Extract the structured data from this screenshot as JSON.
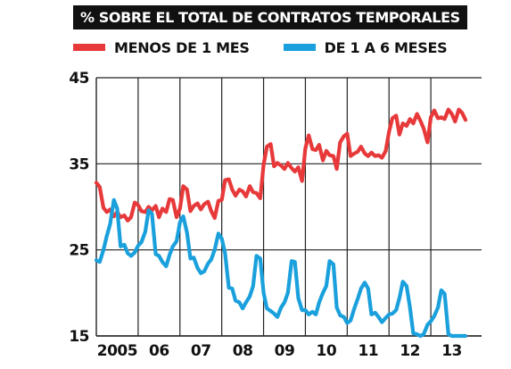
{
  "header": {
    "title": "% SOBRE EL TOTAL DE CONTRATOS TEMPORALES"
  },
  "legend": [
    {
      "label": "MENOS DE 1 MES",
      "color": "#e8393a"
    },
    {
      "label": "DE 1 A 6 MESES",
      "color": "#1aa0dc"
    }
  ],
  "chart_data": {
    "type": "line",
    "title": "% SOBRE EL TOTAL DE CONTRATOS TEMPORALES",
    "xlabel": "",
    "ylabel": "",
    "ylim": [
      15,
      45
    ],
    "yticks": [
      15,
      25,
      35,
      45
    ],
    "xlim": [
      2005.0,
      2014.0
    ],
    "xtick_labels": [
      "2005",
      "06",
      "07",
      "08",
      "09",
      "10",
      "11",
      "12",
      "13"
    ],
    "grid": true,
    "legend_position": "top-left",
    "series": [
      {
        "name": "MENOS DE 1 MES",
        "color": "#e8393a",
        "x": [
          2005.0,
          2005.08,
          2005.17,
          2005.25,
          2005.33,
          2005.42,
          2005.5,
          2005.58,
          2005.67,
          2005.75,
          2005.83,
          2005.92,
          2006.0,
          2006.08,
          2006.17,
          2006.25,
          2006.33,
          2006.42,
          2006.5,
          2006.58,
          2006.67,
          2006.75,
          2006.83,
          2006.92,
          2007.0,
          2007.08,
          2007.17,
          2007.25,
          2007.33,
          2007.42,
          2007.5,
          2007.58,
          2007.67,
          2007.75,
          2007.83,
          2007.92,
          2008.0,
          2008.08,
          2008.17,
          2008.25,
          2008.33,
          2008.42,
          2008.5,
          2008.58,
          2008.67,
          2008.75,
          2008.83,
          2008.92,
          2009.0,
          2009.08,
          2009.17,
          2009.25,
          2009.33,
          2009.42,
          2009.5,
          2009.58,
          2009.67,
          2009.75,
          2009.83,
          2009.92,
          2010.0,
          2010.08,
          2010.17,
          2010.25,
          2010.33,
          2010.42,
          2010.5,
          2010.58,
          2010.67,
          2010.75,
          2010.83,
          2010.92,
          2011.0,
          2011.08,
          2011.17,
          2011.25,
          2011.33,
          2011.42,
          2011.5,
          2011.58,
          2011.67,
          2011.75,
          2011.83,
          2011.92,
          2012.0,
          2012.08,
          2012.17,
          2012.25,
          2012.33,
          2012.42,
          2012.5,
          2012.58,
          2012.67,
          2012.75,
          2012.83,
          2012.92,
          2013.0,
          2013.08,
          2013.17,
          2013.25,
          2013.33,
          2013.42,
          2013.5,
          2013.58,
          2013.67,
          2013.75,
          2013.83
        ],
        "values": [
          32.8,
          32.3,
          29.9,
          29.4,
          29.7,
          28.9,
          29.4,
          28.8,
          29.0,
          28.4,
          28.8,
          30.5,
          30.2,
          29.5,
          29.4,
          30.0,
          29.6,
          30.1,
          28.8,
          29.8,
          29.4,
          30.9,
          30.8,
          28.8,
          29.8,
          32.4,
          32.0,
          29.5,
          30.1,
          30.4,
          29.7,
          30.3,
          30.6,
          29.5,
          28.7,
          30.7,
          30.8,
          33.1,
          33.2,
          32.0,
          31.3,
          32.0,
          31.8,
          31.2,
          32.4,
          31.7,
          31.6,
          31.0,
          34.9,
          37.0,
          37.3,
          34.7,
          35.1,
          34.8,
          34.4,
          35.1,
          34.5,
          34.1,
          34.6,
          33.0,
          36.8,
          38.3,
          36.7,
          36.6,
          37.2,
          35.4,
          36.5,
          36.0,
          35.9,
          34.4,
          37.5,
          38.2,
          38.5,
          35.9,
          36.2,
          36.4,
          37.0,
          36.2,
          35.9,
          36.3,
          35.9,
          36.0,
          35.7,
          36.5,
          38.7,
          40.3,
          40.6,
          38.4,
          39.7,
          39.4,
          40.2,
          39.7,
          40.8,
          40.0,
          39.1,
          37.5,
          40.4,
          41.2,
          40.3,
          40.4,
          40.2,
          41.3,
          40.8,
          39.9,
          41.3,
          40.9,
          40.1
        ]
      },
      {
        "name": "DE 1 A 6 MESES",
        "color": "#1aa0dc",
        "x": [
          2005.0,
          2005.08,
          2005.17,
          2005.25,
          2005.33,
          2005.42,
          2005.5,
          2005.58,
          2005.67,
          2005.75,
          2005.83,
          2005.92,
          2006.0,
          2006.08,
          2006.17,
          2006.25,
          2006.33,
          2006.42,
          2006.5,
          2006.58,
          2006.67,
          2006.75,
          2006.83,
          2006.92,
          2007.0,
          2007.08,
          2007.17,
          2007.25,
          2007.33,
          2007.42,
          2007.5,
          2007.58,
          2007.67,
          2007.75,
          2007.83,
          2007.92,
          2008.0,
          2008.08,
          2008.17,
          2008.25,
          2008.33,
          2008.42,
          2008.5,
          2008.58,
          2008.67,
          2008.75,
          2008.83,
          2008.92,
          2009.0,
          2009.08,
          2009.17,
          2009.25,
          2009.33,
          2009.42,
          2009.5,
          2009.58,
          2009.67,
          2009.75,
          2009.83,
          2009.92,
          2010.0,
          2010.08,
          2010.17,
          2010.25,
          2010.33,
          2010.42,
          2010.5,
          2010.58,
          2010.67,
          2010.75,
          2010.83,
          2010.92,
          2011.0,
          2011.08,
          2011.17,
          2011.25,
          2011.33,
          2011.42,
          2011.5,
          2011.58,
          2011.67,
          2011.75,
          2011.83,
          2011.92,
          2012.0,
          2012.08,
          2012.17,
          2012.25,
          2012.33,
          2012.42,
          2012.5,
          2012.58,
          2012.67,
          2012.75,
          2012.83,
          2012.92,
          2013.0,
          2013.08,
          2013.17,
          2013.25,
          2013.33,
          2013.42,
          2013.5,
          2013.58,
          2013.67,
          2013.75,
          2013.83
        ],
        "values": [
          23.8,
          23.6,
          25.0,
          26.6,
          28.0,
          30.8,
          29.8,
          25.4,
          25.6,
          24.6,
          24.3,
          24.7,
          25.5,
          25.9,
          27.1,
          29.6,
          29.2,
          24.5,
          24.3,
          23.6,
          23.1,
          24.4,
          25.4,
          26.0,
          28.2,
          28.9,
          27.0,
          24.0,
          24.1,
          22.9,
          22.3,
          22.5,
          23.4,
          23.9,
          25.0,
          26.9,
          26.3,
          24.6,
          20.6,
          20.5,
          19.1,
          18.9,
          18.2,
          18.9,
          19.6,
          20.8,
          24.3,
          24.0,
          20.0,
          18.2,
          17.9,
          17.6,
          17.2,
          18.3,
          18.9,
          20.0,
          23.7,
          23.6,
          19.4,
          18.0,
          18.0,
          17.5,
          17.8,
          17.5,
          18.9,
          20.0,
          20.8,
          23.7,
          23.3,
          18.3,
          17.4,
          17.2,
          16.5,
          16.8,
          18.2,
          19.3,
          20.5,
          21.2,
          20.5,
          17.5,
          17.7,
          17.2,
          16.6,
          17.1,
          17.5,
          17.6,
          18.0,
          19.4,
          21.3,
          20.8,
          18.3,
          15.3,
          15.2,
          15.0,
          15.2,
          16.3,
          16.7,
          17.3,
          18.3,
          20.3,
          19.9,
          15.2,
          15.0,
          15.0,
          15.0,
          15.0,
          15.0
        ]
      }
    ]
  }
}
